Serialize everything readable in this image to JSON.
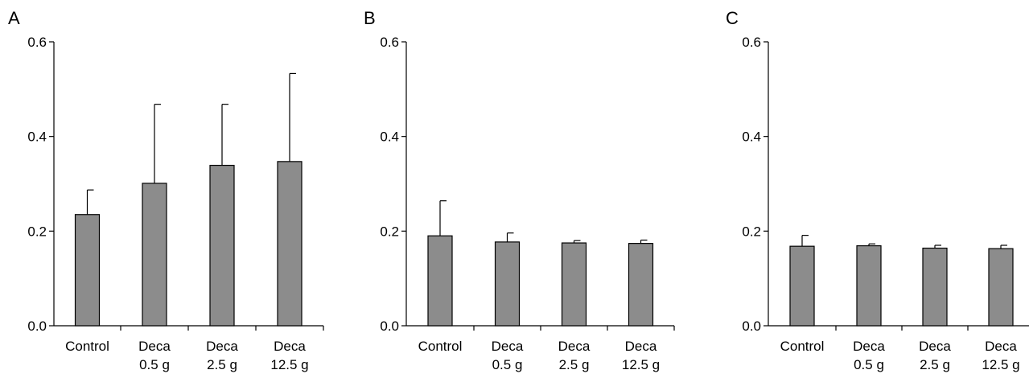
{
  "colors": {
    "bar_fill": "#8c8c8c",
    "bar_stroke": "#000000",
    "axis": "#000000"
  },
  "chart_data": [
    {
      "panel": "A",
      "type": "bar",
      "categories": [
        [
          "Control"
        ],
        [
          "Deca",
          "0.5 g"
        ],
        [
          "Deca",
          "2.5 g"
        ],
        [
          "Deca",
          "12.5 g"
        ]
      ],
      "values": [
        0.235,
        0.301,
        0.339,
        0.347
      ],
      "error_upper": [
        0.287,
        0.468,
        0.468,
        0.533
      ],
      "ylim": [
        0,
        0.6
      ],
      "yticks": [
        "0.0",
        "0.2",
        "0.4",
        "0.6"
      ],
      "ytick_values": [
        0,
        0.2,
        0.4,
        0.6
      ],
      "title": "",
      "xlabel": "",
      "ylabel": "",
      "grid": false,
      "legend": "none"
    },
    {
      "panel": "B",
      "type": "bar",
      "categories": [
        [
          "Control"
        ],
        [
          "Deca",
          "0.5 g"
        ],
        [
          "Deca",
          "2.5 g"
        ],
        [
          "Deca",
          "12.5 g"
        ]
      ],
      "values": [
        0.19,
        0.177,
        0.175,
        0.174
      ],
      "error_upper": [
        0.264,
        0.196,
        0.18,
        0.181
      ],
      "ylim": [
        0,
        0.6
      ],
      "yticks": [
        "0.0",
        "0.2",
        "0.4",
        "0.6"
      ],
      "ytick_values": [
        0,
        0.2,
        0.4,
        0.6
      ],
      "title": "",
      "xlabel": "",
      "ylabel": "",
      "grid": false,
      "legend": "none"
    },
    {
      "panel": "C",
      "type": "bar",
      "categories": [
        [
          "Control"
        ],
        [
          "Deca",
          "0.5 g"
        ],
        [
          "Deca",
          "2.5 g"
        ],
        [
          "Deca",
          "12.5 g"
        ]
      ],
      "values": [
        0.168,
        0.169,
        0.164,
        0.163
      ],
      "error_upper": [
        0.191,
        0.173,
        0.17,
        0.17
      ],
      "ylim": [
        0,
        0.6
      ],
      "yticks": [
        "0.0",
        "0.2",
        "0.4",
        "0.6"
      ],
      "ytick_values": [
        0,
        0.2,
        0.4,
        0.6
      ],
      "title": "",
      "xlabel": "",
      "ylabel": "",
      "grid": false,
      "legend": "none"
    }
  ]
}
